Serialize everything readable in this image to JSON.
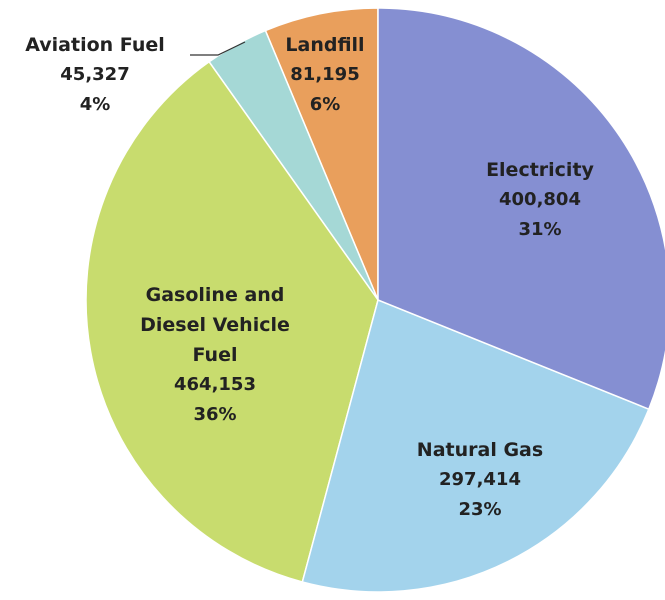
{
  "chart_data": {
    "type": "pie",
    "categories": [
      "Electricity",
      "Natural Gas",
      "Gasoline and Diesel Vehicle Fuel",
      "Aviation Fuel",
      "Landfill"
    ],
    "values": [
      400804,
      297414,
      464153,
      45327,
      81195
    ],
    "value_labels": [
      "400,804",
      "297,414",
      "464,153",
      "45,327",
      "81,195"
    ],
    "percents": [
      31,
      23,
      36,
      4,
      6
    ],
    "percent_labels": [
      "31%",
      "23%",
      "36%",
      "4%",
      "6%"
    ],
    "colors": [
      "#858fd2",
      "#a3d3ec",
      "#c8dc6e",
      "#a5d8d6",
      "#e99f5c"
    ]
  }
}
